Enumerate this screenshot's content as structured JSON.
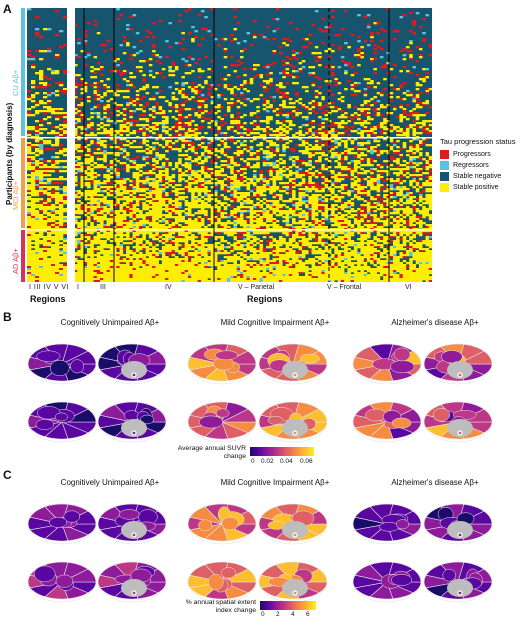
{
  "panel_a": {
    "letter": "A",
    "y_axis_label": "Participants (by diagnosis)",
    "groups": [
      {
        "label": "CU Aβ+",
        "color": "#5bc3e0"
      },
      {
        "label": "MCI Aβ+",
        "color": "#f0a04a"
      },
      {
        "label": "AD Aβ+",
        "color": "#d8315b"
      }
    ],
    "left_regions_title": "Regions",
    "left_region_labels": "I III IV V VI",
    "right_regions_title": "Regions",
    "region_labels": [
      "I",
      "III",
      "IV",
      "V – Parietal",
      "V – Frontal",
      "VI"
    ],
    "legend": {
      "title": "Tau progression status",
      "items": [
        {
          "label": "Progressors",
          "color": "#e31a1c"
        },
        {
          "label": "Regressors",
          "color": "#5bc3e0"
        },
        {
          "label": "Stable negative",
          "color": "#17546e"
        },
        {
          "label": "Stable positive",
          "color": "#ffee00"
        }
      ]
    }
  },
  "panel_b": {
    "letter": "B",
    "titles": [
      "Cognitively Unimpaired Aβ+",
      "Mild Cognitive Impairment Aβ+",
      "Alzheimer's disease Aβ+"
    ],
    "colorbar": {
      "title": "Average annual SUVR change",
      "ticks": [
        "0",
        "0.02",
        "0.04",
        "0.06"
      ]
    }
  },
  "panel_c": {
    "letter": "C",
    "titles": [
      "Cognitively Unimpaired Aβ+",
      "Mild Cognitive Impairment Aβ+",
      "Alzheimer's disease Aβ+"
    ],
    "colorbar": {
      "title": "% annual spatial extent index change",
      "ticks": [
        "0",
        "2",
        "4",
        "6"
      ]
    }
  },
  "colors": {
    "stable_negative": "#17546e",
    "stable_positive": "#ffee00",
    "progressor": "#e31a1c",
    "regressor": "#5bc3e0",
    "plasma": [
      "#1b0c6b",
      "#5a06a0",
      "#8e1b9a",
      "#bd3786",
      "#de5f65",
      "#f58c42",
      "#fdbf2f",
      "#f5f026"
    ]
  }
}
